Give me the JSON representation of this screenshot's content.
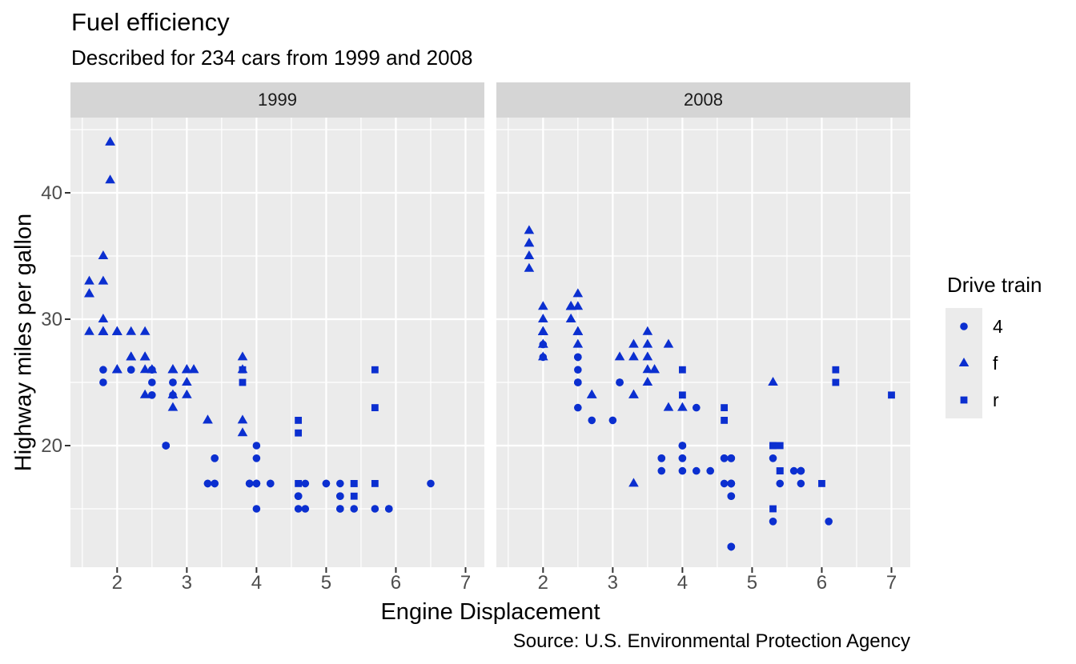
{
  "theme": {
    "background": "#FFFFFF",
    "panel_bg": "#EBEBEB",
    "strip_bg": "#D5D5D5",
    "strip_text": "#1A1A1A",
    "grid_color": "#FFFFFF",
    "tick_color": "#333333",
    "axis_text_color": "#4D4D4D",
    "text_color": "#000000",
    "point_color": "#0B2FD0",
    "legend_key_bg": "#EBEBEB"
  },
  "chart_data": {
    "type": "scatter",
    "title": "Fuel efficiency",
    "subtitle": "Described for 234 cars from 1999 and 2008",
    "caption": "Source: U.S. Environmental Protection Agency",
    "xlabel": "Engine Displacement",
    "ylabel": "Highway miles per gallon",
    "xlim": [
      1.33,
      7.27
    ],
    "ylim": [
      10.38,
      45.95
    ],
    "x_ticks": [
      2,
      3,
      4,
      5,
      6,
      7
    ],
    "y_ticks": [
      20,
      30,
      40
    ],
    "x_minor": [
      1.5,
      2.5,
      3.5,
      4.5,
      5.5,
      6.5
    ],
    "y_minor": [
      15,
      25,
      35,
      45
    ],
    "grid": true,
    "legend": {
      "title": "Drive train",
      "position": "right",
      "entries": [
        {
          "label": "4",
          "value": "4",
          "shape": "circle"
        },
        {
          "label": "f",
          "value": "f",
          "shape": "triangle"
        },
        {
          "label": "r",
          "value": "r",
          "shape": "square"
        }
      ]
    },
    "facets": [
      {
        "label": "1999",
        "points": [
          [
            1.8,
            29,
            "f"
          ],
          [
            1.8,
            29,
            "f"
          ],
          [
            2.8,
            26,
            "f"
          ],
          [
            2.8,
            26,
            "f"
          ],
          [
            1.8,
            26,
            "4"
          ],
          [
            1.8,
            25,
            "4"
          ],
          [
            2.8,
            25,
            "4"
          ],
          [
            2.8,
            25,
            "4"
          ],
          [
            2.8,
            24,
            "4"
          ],
          [
            5.7,
            17,
            "r"
          ],
          [
            5.7,
            26,
            "r"
          ],
          [
            5.7,
            23,
            "r"
          ],
          [
            5.7,
            15,
            "4"
          ],
          [
            6.5,
            17,
            "4"
          ],
          [
            2.4,
            27,
            "f"
          ],
          [
            3.1,
            26,
            "f"
          ],
          [
            2.4,
            24,
            "f"
          ],
          [
            3.0,
            24,
            "f"
          ],
          [
            3.3,
            22,
            "f"
          ],
          [
            3.3,
            22,
            "f"
          ],
          [
            3.8,
            22,
            "f"
          ],
          [
            3.8,
            21,
            "f"
          ],
          [
            3.9,
            17,
            "4"
          ],
          [
            3.9,
            17,
            "4"
          ],
          [
            5.2,
            17,
            "4"
          ],
          [
            5.2,
            15,
            "4"
          ],
          [
            3.9,
            17,
            "4"
          ],
          [
            5.2,
            16,
            "4"
          ],
          [
            5.9,
            15,
            "4"
          ],
          [
            5.2,
            15,
            "4"
          ],
          [
            5.2,
            16,
            "4"
          ],
          [
            5.9,
            15,
            "4"
          ],
          [
            4.6,
            17,
            "r"
          ],
          [
            5.4,
            17,
            "r"
          ],
          [
            4.0,
            17,
            "4"
          ],
          [
            4.0,
            19,
            "4"
          ],
          [
            4.0,
            17,
            "4"
          ],
          [
            5.0,
            17,
            "4"
          ],
          [
            4.2,
            17,
            "4"
          ],
          [
            4.2,
            17,
            "4"
          ],
          [
            4.6,
            16,
            "4"
          ],
          [
            4.6,
            16,
            "4"
          ],
          [
            4.6,
            16,
            "4"
          ],
          [
            5.4,
            15,
            "4"
          ],
          [
            3.8,
            26,
            "r"
          ],
          [
            3.8,
            25,
            "r"
          ],
          [
            4.6,
            21,
            "r"
          ],
          [
            4.6,
            22,
            "r"
          ],
          [
            1.6,
            33,
            "f"
          ],
          [
            1.6,
            32,
            "f"
          ],
          [
            1.6,
            32,
            "f"
          ],
          [
            1.6,
            29,
            "f"
          ],
          [
            1.6,
            32,
            "f"
          ],
          [
            2.4,
            26,
            "f"
          ],
          [
            2.4,
            27,
            "f"
          ],
          [
            2.5,
            26,
            "f"
          ],
          [
            2.5,
            26,
            "f"
          ],
          [
            2.0,
            26,
            "f"
          ],
          [
            2.0,
            29,
            "f"
          ],
          [
            4.0,
            20,
            "4"
          ],
          [
            4.7,
            17,
            "4"
          ],
          [
            4.0,
            15,
            "4"
          ],
          [
            4.6,
            15,
            "4"
          ],
          [
            5.4,
            17,
            "r"
          ],
          [
            5.4,
            16,
            "r"
          ],
          [
            4.0,
            17,
            "4"
          ],
          [
            5.0,
            17,
            "4"
          ],
          [
            2.4,
            29,
            "f"
          ],
          [
            2.4,
            27,
            "f"
          ],
          [
            3.0,
            26,
            "f"
          ],
          [
            3.0,
            25,
            "f"
          ],
          [
            3.3,
            17,
            "4"
          ],
          [
            3.3,
            17,
            "4"
          ],
          [
            3.1,
            26,
            "f"
          ],
          [
            3.8,
            26,
            "f"
          ],
          [
            3.8,
            27,
            "f"
          ],
          [
            2.5,
            25,
            "4"
          ],
          [
            2.5,
            24,
            "4"
          ],
          [
            2.2,
            26,
            "4"
          ],
          [
            2.2,
            26,
            "4"
          ],
          [
            2.5,
            26,
            "4"
          ],
          [
            2.5,
            26,
            "4"
          ],
          [
            2.7,
            20,
            "4"
          ],
          [
            2.7,
            20,
            "4"
          ],
          [
            3.4,
            19,
            "4"
          ],
          [
            3.4,
            17,
            "4"
          ],
          [
            2.2,
            29,
            "f"
          ],
          [
            2.2,
            27,
            "f"
          ],
          [
            3.0,
            26,
            "f"
          ],
          [
            3.0,
            26,
            "f"
          ],
          [
            2.2,
            27,
            "f"
          ],
          [
            2.2,
            27,
            "f"
          ],
          [
            3.0,
            26,
            "f"
          ],
          [
            1.8,
            30,
            "f"
          ],
          [
            1.8,
            33,
            "f"
          ],
          [
            1.8,
            35,
            "f"
          ],
          [
            4.7,
            15,
            "4"
          ],
          [
            2.7,
            20,
            "4"
          ],
          [
            2.7,
            20,
            "4"
          ],
          [
            3.4,
            17,
            "4"
          ],
          [
            3.4,
            19,
            "4"
          ],
          [
            2.0,
            29,
            "f"
          ],
          [
            2.0,
            26,
            "f"
          ],
          [
            2.8,
            24,
            "f"
          ],
          [
            1.9,
            44,
            "f"
          ],
          [
            2.0,
            29,
            "f"
          ],
          [
            2.0,
            26,
            "f"
          ],
          [
            2.8,
            23,
            "f"
          ],
          [
            2.8,
            24,
            "f"
          ],
          [
            1.9,
            44,
            "f"
          ],
          [
            1.9,
            41,
            "f"
          ],
          [
            2.0,
            29,
            "f"
          ],
          [
            2.0,
            26,
            "f"
          ],
          [
            1.8,
            29,
            "f"
          ],
          [
            1.8,
            29,
            "f"
          ],
          [
            2.8,
            26,
            "f"
          ],
          [
            2.8,
            26,
            "f"
          ]
        ]
      },
      {
        "label": "2008",
        "points": [
          [
            2.0,
            31,
            "f"
          ],
          [
            2.0,
            30,
            "f"
          ],
          [
            3.1,
            27,
            "f"
          ],
          [
            2.0,
            28,
            "4"
          ],
          [
            2.0,
            27,
            "4"
          ],
          [
            3.1,
            25,
            "4"
          ],
          [
            3.1,
            25,
            "4"
          ],
          [
            3.1,
            25,
            "4"
          ],
          [
            4.2,
            23,
            "4"
          ],
          [
            5.3,
            20,
            "r"
          ],
          [
            5.3,
            15,
            "r"
          ],
          [
            5.3,
            20,
            "r"
          ],
          [
            6.0,
            17,
            "r"
          ],
          [
            6.2,
            26,
            "r"
          ],
          [
            6.2,
            25,
            "r"
          ],
          [
            7.0,
            24,
            "r"
          ],
          [
            5.3,
            19,
            "4"
          ],
          [
            5.3,
            14,
            "4"
          ],
          [
            2.4,
            30,
            "f"
          ],
          [
            3.5,
            29,
            "f"
          ],
          [
            3.6,
            26,
            "f"
          ],
          [
            3.3,
            24,
            "f"
          ],
          [
            3.3,
            24,
            "f"
          ],
          [
            3.3,
            17,
            "f"
          ],
          [
            3.8,
            23,
            "f"
          ],
          [
            4.0,
            23,
            "f"
          ],
          [
            3.7,
            19,
            "4"
          ],
          [
            3.7,
            18,
            "4"
          ],
          [
            4.7,
            19,
            "4"
          ],
          [
            4.7,
            19,
            "4"
          ],
          [
            4.7,
            12,
            "4"
          ],
          [
            4.7,
            17,
            "4"
          ],
          [
            4.7,
            12,
            "4"
          ],
          [
            4.7,
            17,
            "4"
          ],
          [
            5.7,
            18,
            "4"
          ],
          [
            4.7,
            16,
            "4"
          ],
          [
            4.7,
            12,
            "4"
          ],
          [
            4.7,
            17,
            "4"
          ],
          [
            4.7,
            17,
            "4"
          ],
          [
            4.7,
            16,
            "4"
          ],
          [
            5.7,
            17,
            "4"
          ],
          [
            4.7,
            17,
            "4"
          ],
          [
            5.4,
            18,
            "r"
          ],
          [
            4.0,
            19,
            "4"
          ],
          [
            4.6,
            19,
            "4"
          ],
          [
            4.6,
            17,
            "4"
          ],
          [
            5.4,
            17,
            "4"
          ],
          [
            4.0,
            26,
            "r"
          ],
          [
            4.0,
            24,
            "r"
          ],
          [
            4.6,
            23,
            "r"
          ],
          [
            4.6,
            22,
            "r"
          ],
          [
            5.4,
            20,
            "r"
          ],
          [
            1.8,
            34,
            "f"
          ],
          [
            1.8,
            36,
            "f"
          ],
          [
            1.8,
            36,
            "f"
          ],
          [
            2.0,
            29,
            "f"
          ],
          [
            2.4,
            30,
            "f"
          ],
          [
            2.4,
            31,
            "f"
          ],
          [
            3.3,
            28,
            "f"
          ],
          [
            2.0,
            28,
            "f"
          ],
          [
            2.0,
            27,
            "f"
          ],
          [
            2.7,
            24,
            "f"
          ],
          [
            2.7,
            24,
            "f"
          ],
          [
            3.0,
            22,
            "4"
          ],
          [
            3.7,
            19,
            "4"
          ],
          [
            4.7,
            12,
            "4"
          ],
          [
            4.7,
            19,
            "4"
          ],
          [
            5.7,
            18,
            "4"
          ],
          [
            6.1,
            14,
            "4"
          ],
          [
            4.2,
            18,
            "4"
          ],
          [
            4.4,
            18,
            "4"
          ],
          [
            5.4,
            18,
            "r"
          ],
          [
            4.0,
            19,
            "4"
          ],
          [
            4.6,
            19,
            "4"
          ],
          [
            2.5,
            31,
            "f"
          ],
          [
            2.5,
            32,
            "f"
          ],
          [
            3.5,
            27,
            "f"
          ],
          [
            3.5,
            26,
            "f"
          ],
          [
            3.5,
            25,
            "f"
          ],
          [
            4.0,
            20,
            "4"
          ],
          [
            5.6,
            18,
            "4"
          ],
          [
            3.8,
            28,
            "f"
          ],
          [
            5.3,
            25,
            "f"
          ],
          [
            2.5,
            27,
            "4"
          ],
          [
            2.5,
            25,
            "4"
          ],
          [
            2.5,
            26,
            "4"
          ],
          [
            2.5,
            23,
            "4"
          ],
          [
            2.5,
            25,
            "4"
          ],
          [
            2.5,
            27,
            "4"
          ],
          [
            2.5,
            25,
            "4"
          ],
          [
            2.5,
            27,
            "4"
          ],
          [
            4.0,
            20,
            "4"
          ],
          [
            4.7,
            17,
            "4"
          ],
          [
            2.4,
            31,
            "f"
          ],
          [
            2.4,
            31,
            "f"
          ],
          [
            3.5,
            28,
            "f"
          ],
          [
            2.4,
            31,
            "f"
          ],
          [
            2.4,
            31,
            "f"
          ],
          [
            2.4,
            31,
            "f"
          ],
          [
            3.3,
            27,
            "f"
          ],
          [
            1.8,
            37,
            "f"
          ],
          [
            1.8,
            35,
            "f"
          ],
          [
            5.7,
            18,
            "4"
          ],
          [
            2.7,
            22,
            "4"
          ],
          [
            4.0,
            18,
            "4"
          ],
          [
            4.0,
            20,
            "4"
          ],
          [
            2.0,
            29,
            "f"
          ],
          [
            2.0,
            29,
            "f"
          ],
          [
            2.0,
            29,
            "f"
          ],
          [
            2.0,
            29,
            "f"
          ],
          [
            2.5,
            29,
            "f"
          ],
          [
            2.5,
            29,
            "f"
          ],
          [
            2.5,
            28,
            "f"
          ],
          [
            2.5,
            29,
            "f"
          ],
          [
            2.0,
            28,
            "f"
          ],
          [
            2.0,
            29,
            "f"
          ],
          [
            3.6,
            26,
            "f"
          ]
        ]
      }
    ]
  }
}
